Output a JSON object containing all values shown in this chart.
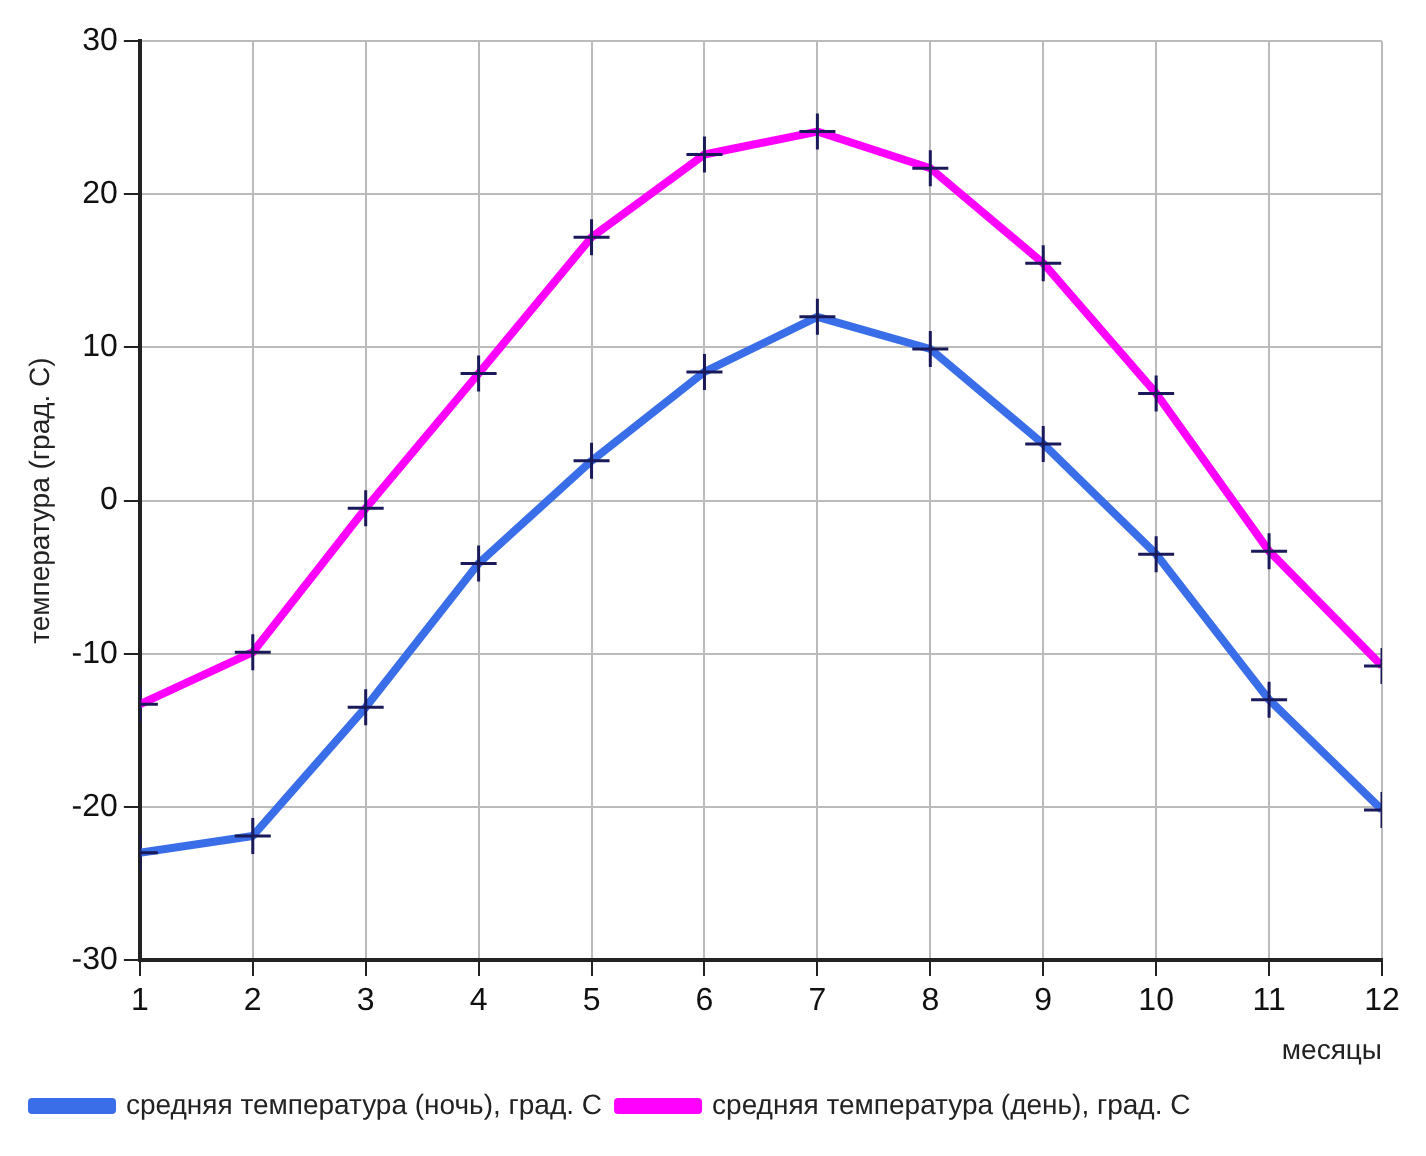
{
  "chart_data": {
    "type": "line",
    "ylabel": "температура (град. С)",
    "xlabel": "месяцы",
    "x": [
      1,
      2,
      3,
      4,
      5,
      6,
      7,
      8,
      9,
      10,
      11,
      12
    ],
    "series": [
      {
        "name": "средняя температура (ночь), град. С",
        "color": "#3a6ee8",
        "values": [
          -23.0,
          -21.9,
          -13.5,
          -4.1,
          2.6,
          8.4,
          12.0,
          9.9,
          3.7,
          -3.5,
          -13.0,
          -20.2
        ]
      },
      {
        "name": "средняя температура (день), град. С",
        "color": "#ff00ff",
        "values": [
          -13.3,
          -9.9,
          -0.5,
          8.3,
          17.2,
          22.6,
          24.1,
          21.7,
          15.5,
          7.0,
          -3.3,
          -10.8
        ]
      }
    ],
    "xlim": [
      1,
      12
    ],
    "xticks": [
      1,
      2,
      3,
      4,
      5,
      6,
      7,
      8,
      9,
      10,
      11,
      12
    ],
    "ylim": [
      -30,
      30
    ],
    "yticks": [
      -30,
      -20,
      -10,
      0,
      10,
      20,
      30
    ],
    "grid": true,
    "legend": "bottom",
    "marker": "cross",
    "line_style": "solid"
  }
}
